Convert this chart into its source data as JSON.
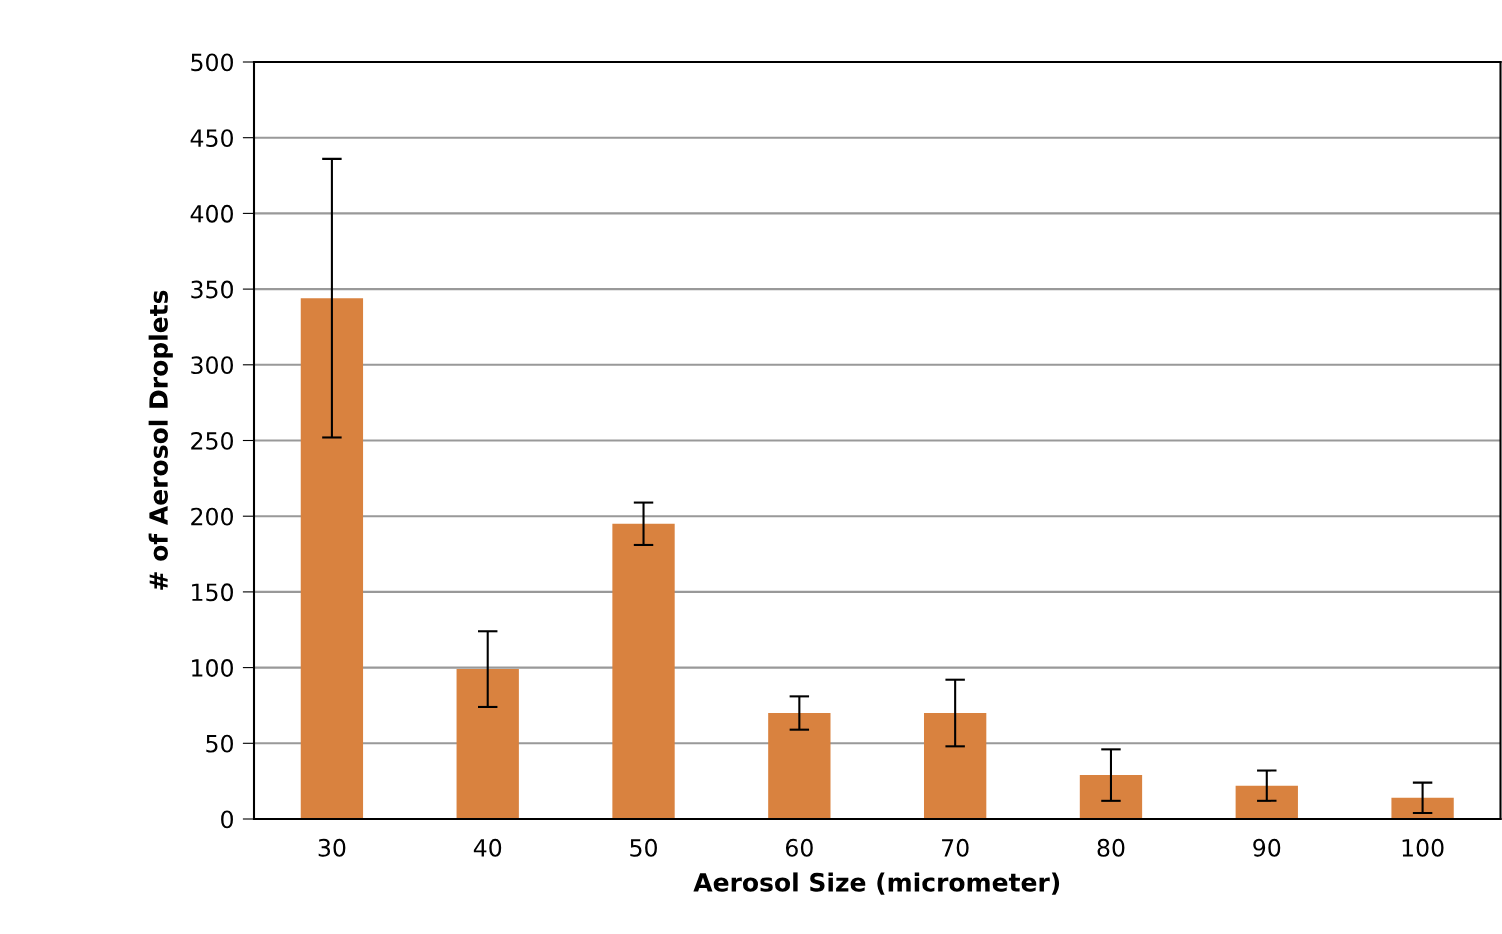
{
  "chart_data": {
    "type": "bar",
    "xlabel": "Aerosol Size (micrometer)",
    "ylabel": "# of Aerosol Droplets",
    "categories": [
      "30",
      "40",
      "50",
      "60",
      "70",
      "80",
      "90",
      "100"
    ],
    "series": [
      {
        "color": "#d9823f",
        "values": [
          344,
          99,
          195,
          70,
          70,
          29,
          22,
          14
        ],
        "errors": [
          92,
          25,
          14,
          11,
          22,
          17,
          10,
          10
        ]
      }
    ],
    "ylim": [
      0,
      500
    ],
    "yticks": [
      0,
      50,
      100,
      150,
      200,
      250,
      300,
      350,
      400,
      450,
      500
    ],
    "grid": "y",
    "legend": false
  }
}
